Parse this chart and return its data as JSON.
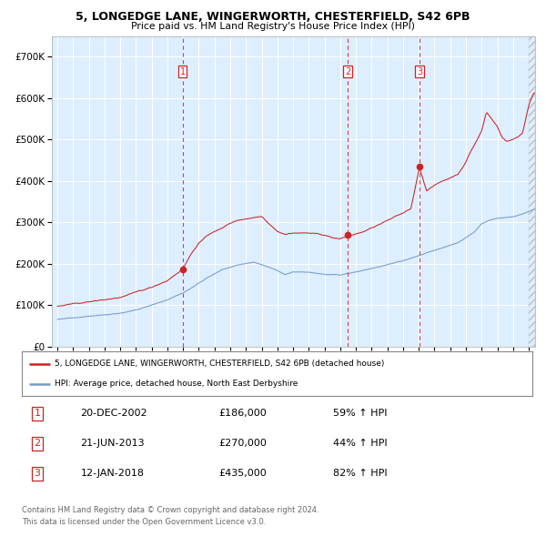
{
  "title1": "5, LONGEDGE LANE, WINGERWORTH, CHESTERFIELD, S42 6PB",
  "title2": "Price paid vs. HM Land Registry's House Price Index (HPI)",
  "legend_line1": "5, LONGEDGE LANE, WINGERWORTH, CHESTERFIELD, S42 6PB (detached house)",
  "legend_line2": "HPI: Average price, detached house, North East Derbyshire",
  "transactions": [
    {
      "num": 1,
      "date": "20-DEC-2002",
      "date_x": 2002.97,
      "price": 186000,
      "pct": "59%",
      "dir": "↑"
    },
    {
      "num": 2,
      "date": "21-JUN-2013",
      "date_x": 2013.47,
      "price": 270000,
      "pct": "44%",
      "dir": "↑"
    },
    {
      "num": 3,
      "date": "12-JAN-2018",
      "date_x": 2018.04,
      "price": 435000,
      "pct": "82%",
      "dir": "↑"
    }
  ],
  "ylim": [
    0,
    750000
  ],
  "xlim_start": 1994.65,
  "xlim_end": 2025.4,
  "hpi_color": "#7799cc",
  "price_color": "#cc2222",
  "bg_color": "#ddeeff",
  "grid_color": "#ffffff",
  "footnote1": "Contains HM Land Registry data © Crown copyright and database right 2024.",
  "footnote2": "This data is licensed under the Open Government Licence v3.0.",
  "hpi_anchors_x": [
    1995.0,
    1996.0,
    1997.0,
    1998.0,
    1999.0,
    2000.0,
    2001.0,
    2002.0,
    2003.0,
    2004.5,
    2005.5,
    2006.5,
    2007.5,
    2008.5,
    2009.5,
    2010.0,
    2011.0,
    2012.0,
    2013.0,
    2013.5,
    2014.5,
    2015.5,
    2016.5,
    2017.5,
    2018.5,
    2019.5,
    2020.5,
    2021.5,
    2022.0,
    2022.5,
    2023.0,
    2023.5,
    2024.0,
    2024.5,
    2025.3
  ],
  "hpi_anchors_y": [
    65000,
    68000,
    74000,
    78000,
    83000,
    91000,
    102000,
    115000,
    132000,
    168000,
    188000,
    200000,
    207000,
    194000,
    176000,
    181000,
    181000,
    176000,
    172000,
    176000,
    184000,
    193000,
    202000,
    214000,
    227000,
    239000,
    251000,
    274000,
    295000,
    303000,
    308000,
    310000,
    313000,
    318000,
    330000
  ],
  "price_anchors_x": [
    1995.0,
    1996.0,
    1997.0,
    1998.0,
    1999.0,
    2000.0,
    2001.0,
    2002.0,
    2002.97,
    2003.5,
    2004.0,
    2004.5,
    2005.0,
    2005.5,
    2006.0,
    2006.5,
    2007.0,
    2007.5,
    2008.0,
    2008.5,
    2009.0,
    2009.5,
    2010.0,
    2011.0,
    2012.0,
    2012.5,
    2013.0,
    2013.47,
    2014.0,
    2014.5,
    2015.0,
    2016.0,
    2017.0,
    2017.5,
    2018.04,
    2018.5,
    2019.0,
    2019.5,
    2020.0,
    2020.5,
    2021.0,
    2021.3,
    2021.6,
    2022.0,
    2022.3,
    2022.6,
    2023.0,
    2023.3,
    2023.6,
    2024.0,
    2024.3,
    2024.6,
    2025.0,
    2025.3
  ],
  "price_anchors_y": [
    97000,
    101000,
    106000,
    111000,
    117000,
    127000,
    139000,
    157000,
    186000,
    222000,
    250000,
    265000,
    278000,
    285000,
    297000,
    304000,
    308000,
    312000,
    315000,
    298000,
    282000,
    275000,
    279000,
    279000,
    274000,
    268000,
    265000,
    270000,
    276000,
    282000,
    290000,
    307000,
    323000,
    335000,
    435000,
    380000,
    392000,
    402000,
    410000,
    420000,
    450000,
    475000,
    495000,
    525000,
    570000,
    555000,
    535000,
    510000,
    500000,
    505000,
    510000,
    520000,
    588000,
    618000
  ]
}
